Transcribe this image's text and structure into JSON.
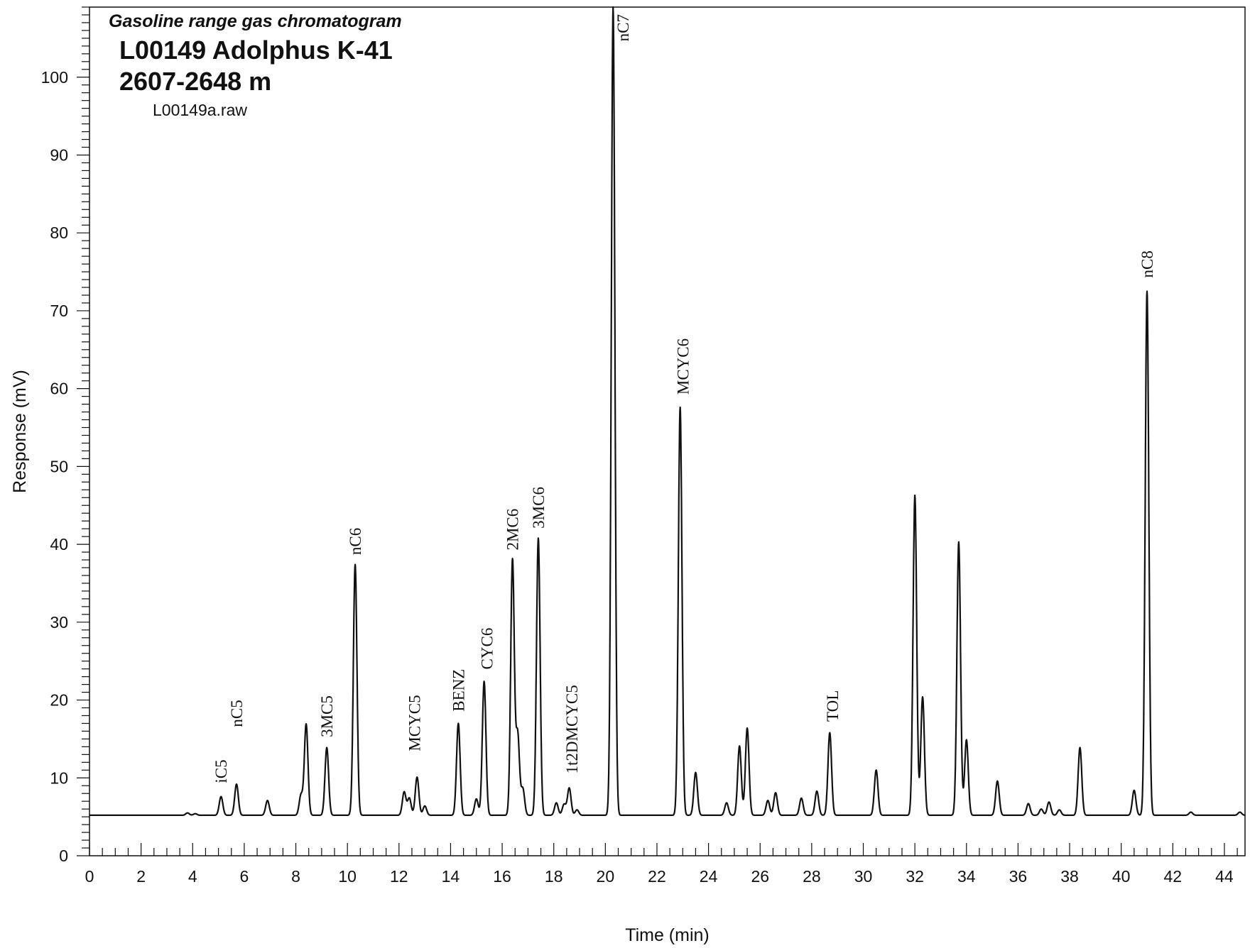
{
  "chart_data": {
    "type": "line",
    "subtitle": "Gasoline range gas chromatogram",
    "title_line1": "L00149 Adolphus K-41",
    "title_line2": "2607-2648 m",
    "file_label": "L00149a.raw",
    "xlabel": "Time (min)",
    "ylabel": "Response (mV)",
    "xlim": [
      0,
      44.8
    ],
    "ylim": [
      0,
      109
    ],
    "x_ticks": [
      "0",
      "2",
      "4",
      "6",
      "8",
      "10",
      "12",
      "14",
      "16",
      "18",
      "20",
      "22",
      "24",
      "26",
      "28",
      "30",
      "32",
      "34",
      "36",
      "38",
      "40",
      "42",
      "44"
    ],
    "y_ticks": [
      "0",
      "10",
      "20",
      "30",
      "40",
      "50",
      "60",
      "70",
      "80",
      "90",
      "100"
    ],
    "grid": false,
    "legend": "none",
    "line_color": "#111111",
    "baseline": 5.2,
    "series": [
      {
        "peaks": [
          {
            "x": 3.8,
            "y": 5.5
          },
          {
            "x": 4.1,
            "y": 5.4
          },
          {
            "x": 5.1,
            "y": 7.6
          },
          {
            "x": 5.7,
            "y": 9.2
          },
          {
            "x": 6.9,
            "y": 7.1
          },
          {
            "x": 8.2,
            "y": 7.8
          },
          {
            "x": 8.4,
            "y": 16.9
          },
          {
            "x": 9.2,
            "y": 13.9
          },
          {
            "x": 10.3,
            "y": 37.4
          },
          {
            "x": 12.2,
            "y": 8.2
          },
          {
            "x": 12.4,
            "y": 7.4
          },
          {
            "x": 12.7,
            "y": 10.1
          },
          {
            "x": 13.0,
            "y": 6.4
          },
          {
            "x": 14.3,
            "y": 17.0
          },
          {
            "x": 15.0,
            "y": 7.3
          },
          {
            "x": 15.3,
            "y": 22.4
          },
          {
            "x": 16.4,
            "y": 38.0
          },
          {
            "x": 16.6,
            "y": 15.6
          },
          {
            "x": 16.8,
            "y": 8.6
          },
          {
            "x": 17.4,
            "y": 40.8
          },
          {
            "x": 18.1,
            "y": 6.8
          },
          {
            "x": 18.4,
            "y": 6.6
          },
          {
            "x": 18.6,
            "y": 8.7
          },
          {
            "x": 18.9,
            "y": 5.9
          },
          {
            "x": 20.3,
            "y": 109.0
          },
          {
            "x": 22.9,
            "y": 57.6
          },
          {
            "x": 23.5,
            "y": 10.7
          },
          {
            "x": 24.7,
            "y": 6.8
          },
          {
            "x": 25.2,
            "y": 14.1
          },
          {
            "x": 25.5,
            "y": 16.4
          },
          {
            "x": 26.3,
            "y": 7.1
          },
          {
            "x": 26.6,
            "y": 8.1
          },
          {
            "x": 27.6,
            "y": 7.4
          },
          {
            "x": 28.2,
            "y": 8.3
          },
          {
            "x": 28.7,
            "y": 15.8
          },
          {
            "x": 30.5,
            "y": 11.0
          },
          {
            "x": 32.0,
            "y": 46.3
          },
          {
            "x": 32.3,
            "y": 20.4
          },
          {
            "x": 33.7,
            "y": 40.3
          },
          {
            "x": 34.0,
            "y": 14.9
          },
          {
            "x": 35.2,
            "y": 9.6
          },
          {
            "x": 36.4,
            "y": 6.7
          },
          {
            "x": 36.9,
            "y": 6.0
          },
          {
            "x": 37.2,
            "y": 6.9
          },
          {
            "x": 37.6,
            "y": 5.9
          },
          {
            "x": 38.4,
            "y": 13.9
          },
          {
            "x": 40.5,
            "y": 8.4
          },
          {
            "x": 41.0,
            "y": 72.5
          },
          {
            "x": 42.7,
            "y": 5.6
          },
          {
            "x": 44.6,
            "y": 5.6
          }
        ]
      }
    ],
    "peak_labels": [
      {
        "text": "iC5",
        "x": 5.1,
        "y": 8.6
      },
      {
        "text": "nC5",
        "x": 5.7,
        "y": 15.8
      },
      {
        "text": "3MC5",
        "x": 9.2,
        "y": 14.5
      },
      {
        "text": "nC6",
        "x": 10.3,
        "y": 37.9
      },
      {
        "text": "MCYC5",
        "x": 12.6,
        "y": 12.7
      },
      {
        "text": "BENZ",
        "x": 14.3,
        "y": 17.8
      },
      {
        "text": "CYC6",
        "x": 15.4,
        "y": 23.2
      },
      {
        "text": "2MC6",
        "x": 16.4,
        "y": 38.5
      },
      {
        "text": "3MC6",
        "x": 17.4,
        "y": 41.3
      },
      {
        "text": "1t2DMCYC5",
        "x": 18.7,
        "y": 9.8
      },
      {
        "text": "nC7",
        "x": 20.9,
        "y": 109.0
      },
      {
        "text": "MCYC6",
        "x": 23.0,
        "y": 58.5
      },
      {
        "text": "TOL",
        "x": 28.8,
        "y": 16.5
      },
      {
        "text": "nC8",
        "x": 41.0,
        "y": 73.5
      }
    ]
  }
}
